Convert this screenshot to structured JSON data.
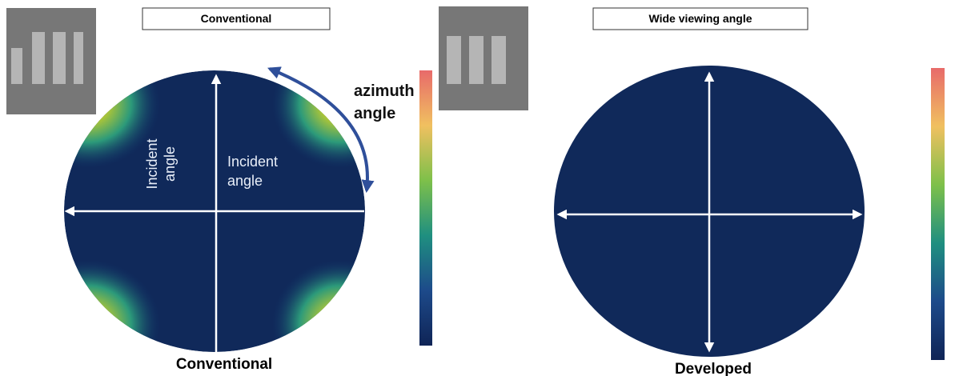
{
  "panels": [
    {
      "title": "Conventional",
      "caption": "Conventional"
    },
    {
      "title": "Wide viewing angle",
      "caption": "Developed"
    }
  ],
  "annotations": {
    "azimuth_angle": [
      "azimuth",
      "angle"
    ],
    "incident_angle_vertical": [
      "Incident",
      "angle"
    ],
    "incident_angle_horizontal": [
      "Incident",
      "angle"
    ]
  }
}
